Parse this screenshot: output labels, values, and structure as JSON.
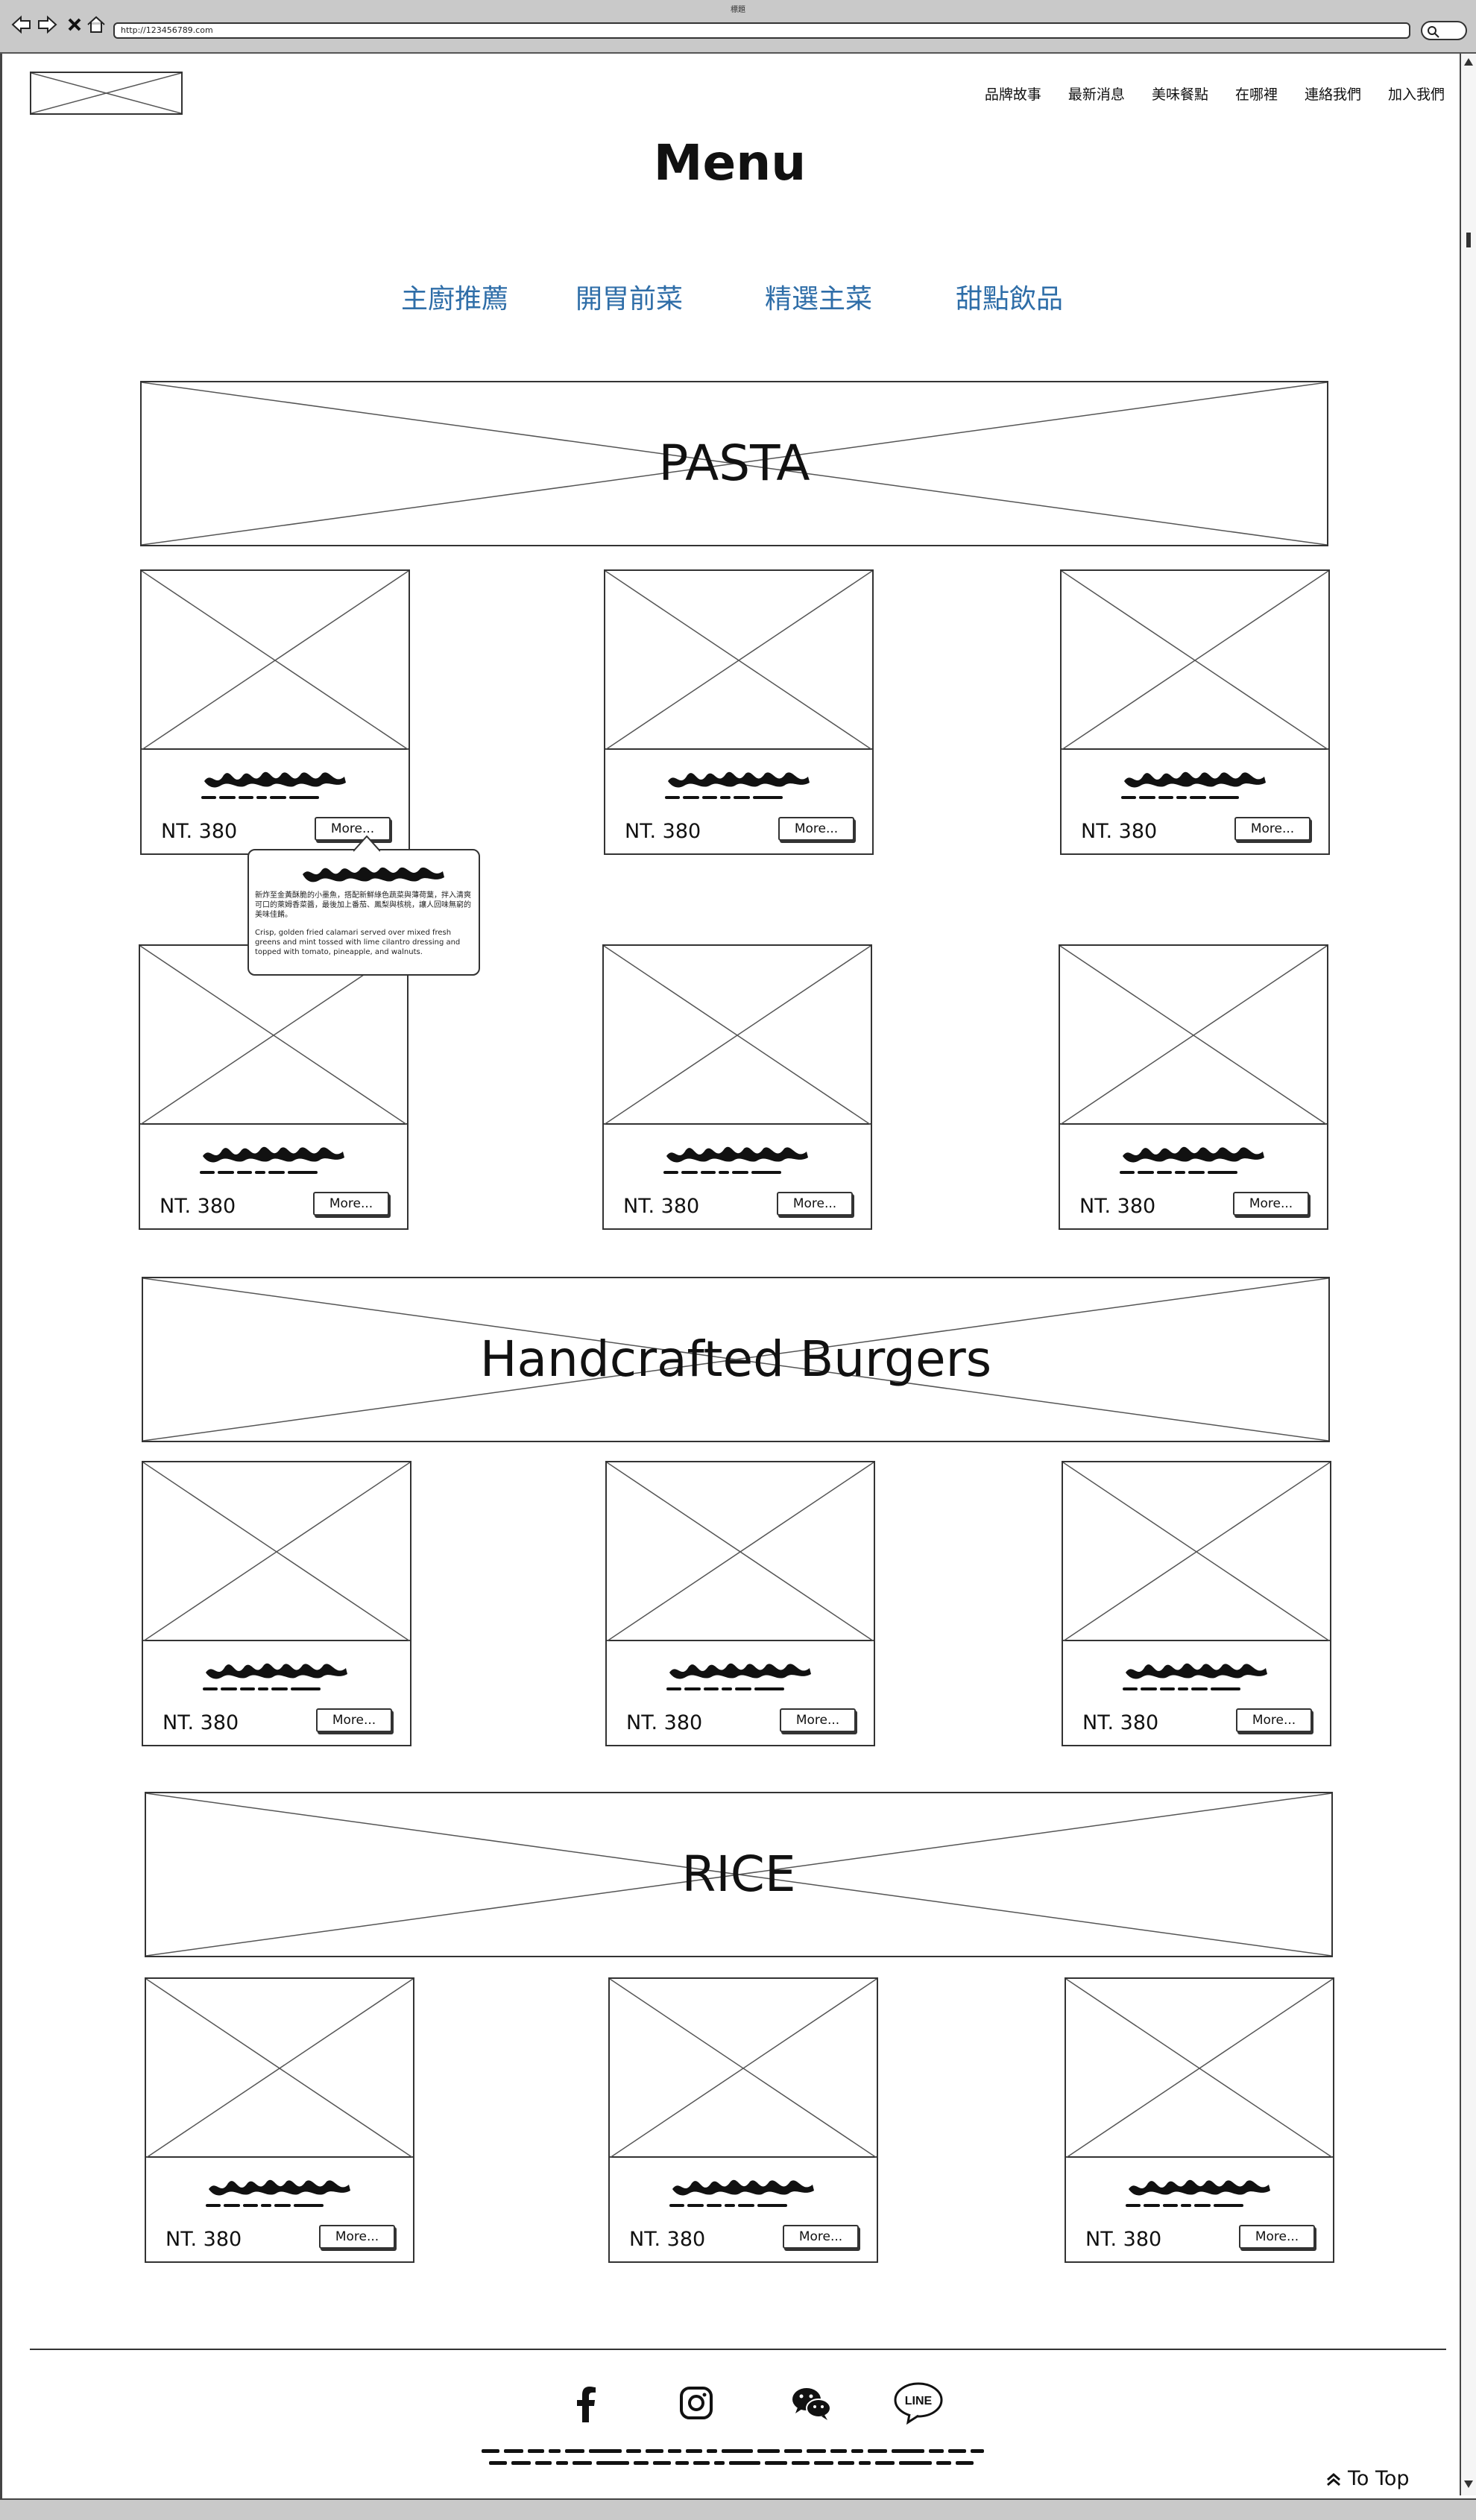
{
  "browser": {
    "tab_title": "標題",
    "url": "http://123456789.com"
  },
  "header": {
    "nav": [
      "品牌故事",
      "最新消息",
      "美味餐點",
      "在哪裡",
      "連絡我們",
      "加入我們"
    ]
  },
  "page_title": "Menu",
  "categories": [
    "主廚推薦",
    "開胃前菜",
    "精選主菜",
    "甜點飲品"
  ],
  "sections": [
    {
      "banner": "PASTA"
    },
    {
      "banner": "Handcrafted Burgers"
    },
    {
      "banner": "RICE"
    }
  ],
  "card": {
    "price": "NT. 380",
    "more_label": "More..."
  },
  "tooltip": {
    "zh": "新炸至金黃酥脆的小墨魚，搭配新鮮綠色蔬菜與薄荷葉，拌入清爽可口的萊姆香菜醬，最後加上番茄、鳳梨與核桃，讓人回味無窮的美味佳餚。",
    "en": "Crisp, golden fried calamari served over mixed fresh greens and mint tossed with lime cilantro dressing and topped with tomato, pineapple, and walnuts."
  },
  "footer": {
    "icons": [
      "facebook-icon",
      "instagram-icon",
      "wechat-icon",
      "line-icon"
    ],
    "line_label": "LINE",
    "to_top": "To Top"
  }
}
